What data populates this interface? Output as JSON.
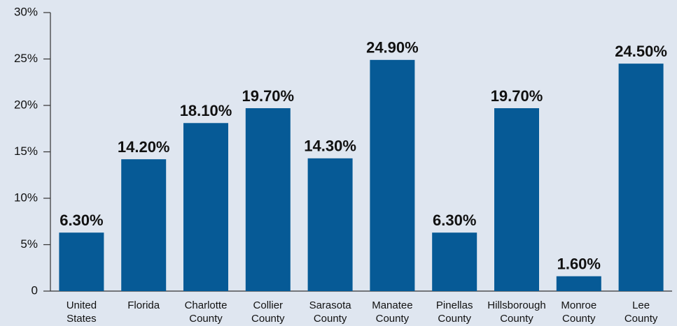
{
  "chart_data": {
    "type": "bar",
    "categories": [
      "United States",
      "Florida",
      "Charlotte County",
      "Collier County",
      "Sarasota County",
      "Manatee County",
      "Pinellas County",
      "Hillsborough County",
      "Monroe County",
      "Lee County"
    ],
    "values": [
      6.3,
      14.2,
      18.1,
      19.7,
      14.3,
      24.9,
      6.3,
      19.7,
      1.6,
      24.5
    ],
    "value_labels": [
      "6.30%",
      "14.20%",
      "18.10%",
      "19.70%",
      "14.30%",
      "24.90%",
      "6.30%",
      "19.70%",
      "1.60%",
      "24.50%"
    ],
    "color": "#065a96",
    "ylim": [
      0,
      30
    ],
    "yticks": [
      0,
      {
        "value": 5,
        "label": "5%"
      },
      {
        "value": 10,
        "label": "10%"
      },
      {
        "value": 15,
        "label": "15%"
      },
      {
        "value": 20,
        "label": "20%"
      },
      {
        "value": 25,
        "label": "25%"
      },
      {
        "value": 30,
        "label": "30%"
      }
    ],
    "grid": false
  }
}
